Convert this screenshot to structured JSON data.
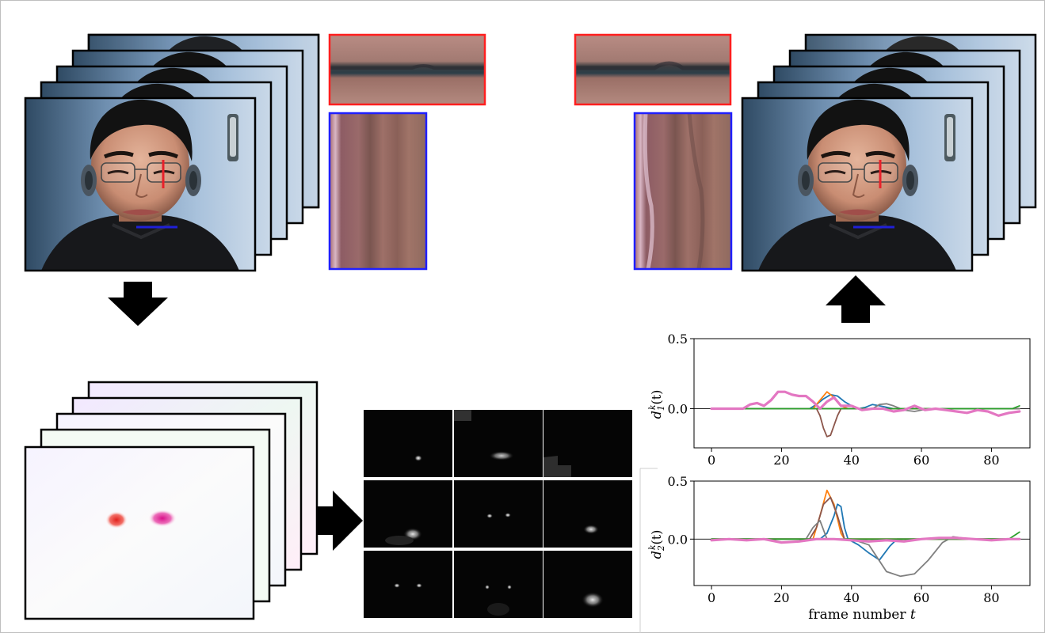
{
  "charts": [
    {
      "type": "line",
      "ylabel": "d_1^k(t)",
      "ylabel_main": "d",
      "ylabel_sub": "1",
      "ylabel_sup": "k",
      "ylabel_tail": "(t)",
      "xlabel": "",
      "xlim": [
        -5,
        91
      ],
      "ylim": [
        -0.28,
        0.5
      ],
      "xticks": [
        0,
        20,
        40,
        60,
        80
      ],
      "yticks": [
        0.5,
        0.0
      ],
      "xtick_labels": [
        "0",
        "20",
        "40",
        "60",
        "80"
      ],
      "ytick_labels": [
        "0.5",
        "0.0"
      ],
      "baseline": 0,
      "series": [
        {
          "color": "#1f77b4",
          "points": [
            [
              0,
              0
            ],
            [
              28,
              0
            ],
            [
              30,
              0.03
            ],
            [
              32,
              0.07
            ],
            [
              34,
              0.1
            ],
            [
              36,
              0.09
            ],
            [
              38,
              0.05
            ],
            [
              40,
              0.02
            ],
            [
              42,
              0.0
            ],
            [
              44,
              0.01
            ],
            [
              46,
              0.03
            ],
            [
              48,
              0.02
            ],
            [
              52,
              0.0
            ],
            [
              88,
              0.0
            ]
          ]
        },
        {
          "color": "#ff7f0e",
          "points": [
            [
              0,
              0
            ],
            [
              29,
              0
            ],
            [
              31,
              0.06
            ],
            [
              33,
              0.12
            ],
            [
              35,
              0.08
            ],
            [
              37,
              0.02
            ],
            [
              39,
              0.0
            ],
            [
              88,
              0.0
            ]
          ]
        },
        {
          "color": "#8c564b",
          "points": [
            [
              0,
              0
            ],
            [
              30,
              0
            ],
            [
              31,
              -0.05
            ],
            [
              32,
              -0.14
            ],
            [
              33,
              -0.2
            ],
            [
              34,
              -0.19
            ],
            [
              35,
              -0.12
            ],
            [
              36,
              -0.05
            ],
            [
              37,
              0.0
            ],
            [
              88,
              0.0
            ]
          ]
        },
        {
          "color": "#7f7f7f",
          "points": [
            [
              0,
              0
            ],
            [
              46,
              0
            ],
            [
              48,
              0.03
            ],
            [
              50,
              0.035
            ],
            [
              52,
              0.02
            ],
            [
              55,
              -0.01
            ],
            [
              58,
              -0.02
            ],
            [
              62,
              0.0
            ],
            [
              88,
              0.0
            ]
          ]
        },
        {
          "color": "#2ca02c",
          "points": [
            [
              0,
              0
            ],
            [
              86,
              0
            ],
            [
              88,
              0.02
            ]
          ]
        },
        {
          "color": "#e377c2",
          "points": [
            [
              0,
              0
            ],
            [
              9,
              0
            ],
            [
              11,
              0.03
            ],
            [
              13,
              0.04
            ],
            [
              15,
              0.02
            ],
            [
              17,
              0.06
            ],
            [
              19,
              0.12
            ],
            [
              21,
              0.12
            ],
            [
              23,
              0.1
            ],
            [
              25,
              0.09
            ],
            [
              27,
              0.09
            ],
            [
              29,
              0.05
            ],
            [
              31,
              0.0
            ],
            [
              33,
              0.05
            ],
            [
              35,
              0.08
            ],
            [
              37,
              0.02
            ],
            [
              40,
              0.02
            ],
            [
              43,
              -0.01
            ],
            [
              46,
              0.0
            ],
            [
              49,
              0.0
            ],
            [
              52,
              -0.02
            ],
            [
              55,
              -0.01
            ],
            [
              58,
              0.02
            ],
            [
              61,
              -0.01
            ],
            [
              64,
              0.0
            ],
            [
              67,
              -0.01
            ],
            [
              70,
              -0.02
            ],
            [
              73,
              -0.03
            ],
            [
              76,
              -0.01
            ],
            [
              79,
              -0.02
            ],
            [
              82,
              -0.05
            ],
            [
              85,
              -0.03
            ],
            [
              88,
              -0.02
            ]
          ]
        }
      ]
    },
    {
      "type": "line",
      "ylabel": "d_2^k(t)",
      "ylabel_main": "d",
      "ylabel_sub": "2",
      "ylabel_sup": "k",
      "ylabel_tail": "(t)",
      "xlabel": "frame number t",
      "xlabel_main": "frame number ",
      "xlabel_var": "t",
      "xlim": [
        -5,
        91
      ],
      "ylim": [
        -0.4,
        0.5
      ],
      "xticks": [
        0,
        20,
        40,
        60,
        80
      ],
      "yticks": [
        0.5,
        0.0
      ],
      "xtick_labels": [
        "0",
        "20",
        "40",
        "60",
        "80"
      ],
      "ytick_labels": [
        "0.5",
        "0.0"
      ],
      "baseline": 0,
      "series": [
        {
          "color": "#1f77b4",
          "points": [
            [
              0,
              0
            ],
            [
              31,
              0
            ],
            [
              33,
              0.05
            ],
            [
              35,
              0.2
            ],
            [
              36,
              0.3
            ],
            [
              37,
              0.28
            ],
            [
              38,
              0.1
            ],
            [
              39,
              0.0
            ],
            [
              42,
              -0.05
            ],
            [
              45,
              -0.12
            ],
            [
              48,
              -0.18
            ],
            [
              51,
              -0.06
            ],
            [
              53,
              0.0
            ],
            [
              88,
              0.0
            ]
          ]
        },
        {
          "color": "#ff7f0e",
          "points": [
            [
              0,
              0
            ],
            [
              29,
              0
            ],
            [
              31,
              0.2
            ],
            [
              33,
              0.42
            ],
            [
              35,
              0.3
            ],
            [
              37,
              0.05
            ],
            [
              38,
              0.0
            ],
            [
              88,
              0.0
            ]
          ]
        },
        {
          "color": "#8c564b",
          "points": [
            [
              0,
              0
            ],
            [
              28,
              0
            ],
            [
              30,
              0.1
            ],
            [
              32,
              0.3
            ],
            [
              34,
              0.36
            ],
            [
              36,
              0.2
            ],
            [
              38,
              0.0
            ],
            [
              88,
              0.0
            ]
          ]
        },
        {
          "color": "#7f7f7f",
          "points": [
            [
              0,
              0
            ],
            [
              27,
              0
            ],
            [
              29,
              0.1
            ],
            [
              31,
              0.16
            ],
            [
              33,
              0.0
            ],
            [
              40,
              0.0
            ],
            [
              45,
              -0.05
            ],
            [
              50,
              -0.28
            ],
            [
              54,
              -0.32
            ],
            [
              58,
              -0.3
            ],
            [
              62,
              -0.18
            ],
            [
              66,
              -0.03
            ],
            [
              69,
              0.02
            ],
            [
              74,
              0.0
            ],
            [
              88,
              0.0
            ]
          ]
        },
        {
          "color": "#2ca02c",
          "points": [
            [
              0,
              0
            ],
            [
              85,
              0
            ],
            [
              88,
              0.06
            ]
          ]
        },
        {
          "color": "#e377c2",
          "points": [
            [
              0,
              -0.01
            ],
            [
              5,
              0.0
            ],
            [
              10,
              -0.01
            ],
            [
              15,
              0.0
            ],
            [
              20,
              -0.03
            ],
            [
              25,
              -0.02
            ],
            [
              30,
              0.0
            ],
            [
              35,
              0.0
            ],
            [
              40,
              -0.01
            ],
            [
              45,
              -0.02
            ],
            [
              50,
              -0.01
            ],
            [
              55,
              -0.02
            ],
            [
              60,
              0.0
            ],
            [
              65,
              0.01
            ],
            [
              70,
              0.01
            ],
            [
              75,
              0.0
            ],
            [
              80,
              -0.01
            ],
            [
              85,
              0.0
            ],
            [
              88,
              0.0
            ]
          ]
        }
      ]
    }
  ],
  "colors": {
    "red_marker": "#e8202a",
    "blue_marker": "#2020d8",
    "arrow": "#000000",
    "red_box": "#ff1f1f",
    "blue_box": "#1f1fff"
  },
  "icons": [
    "arrow-down-icon",
    "arrow-right-icon",
    "arrow-up-icon"
  ]
}
